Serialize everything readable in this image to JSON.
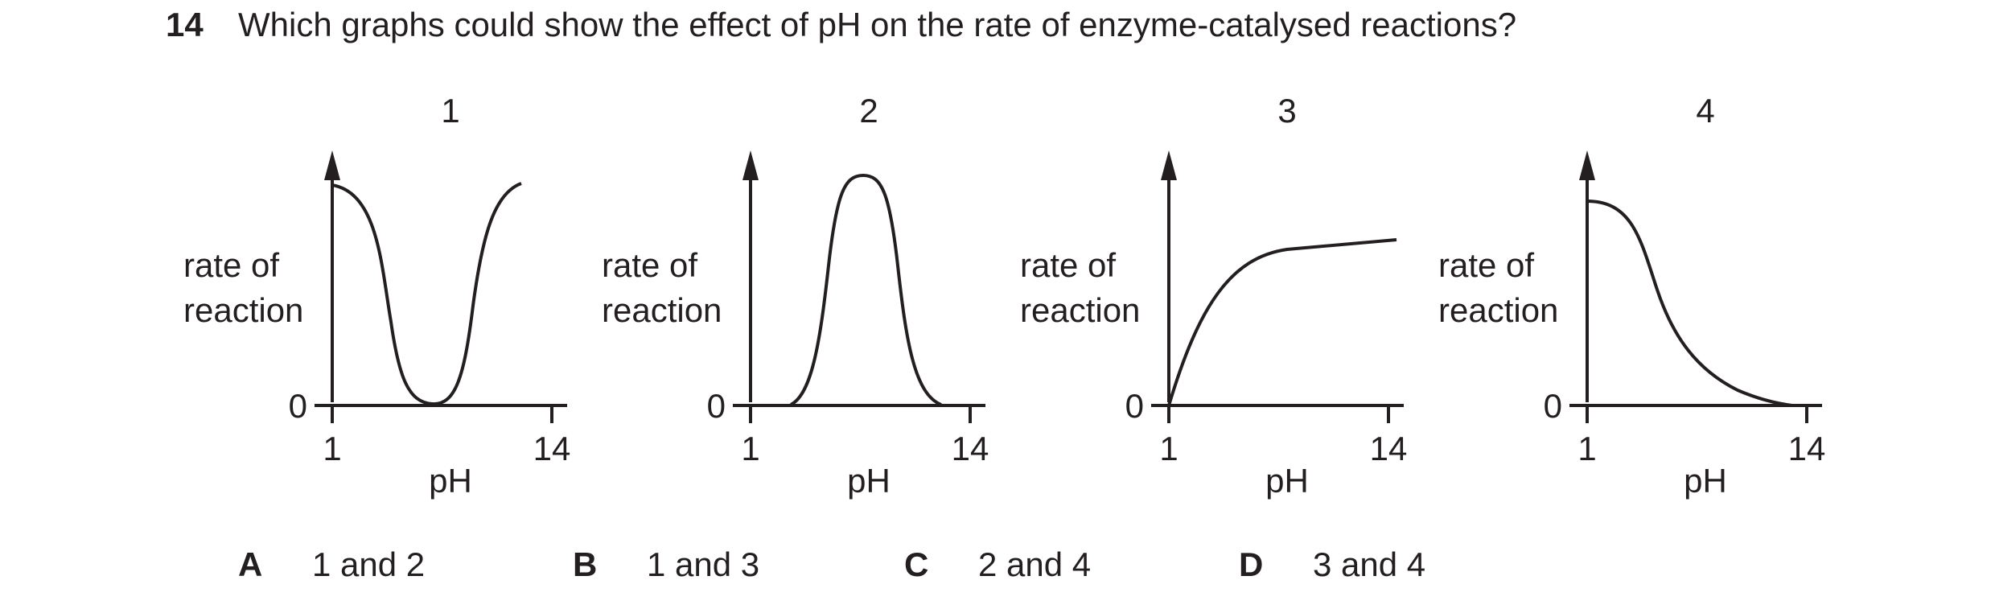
{
  "question": {
    "number": "14",
    "text": "Which graphs could show the effect of pH on the rate of enzyme-catalysed reactions?"
  },
  "graphs": [
    {
      "number": "1",
      "ylabel_line1": "rate of",
      "ylabel_line2": "reaction",
      "y_zero": "0",
      "x_min": "1",
      "x_max": "14",
      "xlabel": "pH",
      "curve_shape": "high at pH 1, falls to 0 at middle pH, rises again at high pH (U-shape)"
    },
    {
      "number": "2",
      "ylabel_line1": "rate of",
      "ylabel_line2": "reaction",
      "y_zero": "0",
      "x_min": "1",
      "x_max": "14",
      "xlabel": "pH",
      "curve_shape": "bell-shaped peak at middle pH"
    },
    {
      "number": "3",
      "ylabel_line1": "rate of",
      "ylabel_line2": "reaction",
      "y_zero": "0",
      "x_min": "1",
      "x_max": "14",
      "xlabel": "pH",
      "curve_shape": "rises from origin then levels off"
    },
    {
      "number": "4",
      "ylabel_line1": "rate of",
      "ylabel_line2": "reaction",
      "y_zero": "0",
      "x_min": "1",
      "x_max": "14",
      "xlabel": "pH",
      "curve_shape": "high at pH 1, decreases to 0 at pH 14"
    }
  ],
  "options": [
    {
      "letter": "A",
      "text": "1 and 2"
    },
    {
      "letter": "B",
      "text": "1 and 3"
    },
    {
      "letter": "C",
      "text": "2 and 4"
    },
    {
      "letter": "D",
      "text": "3 and 4"
    }
  ]
}
